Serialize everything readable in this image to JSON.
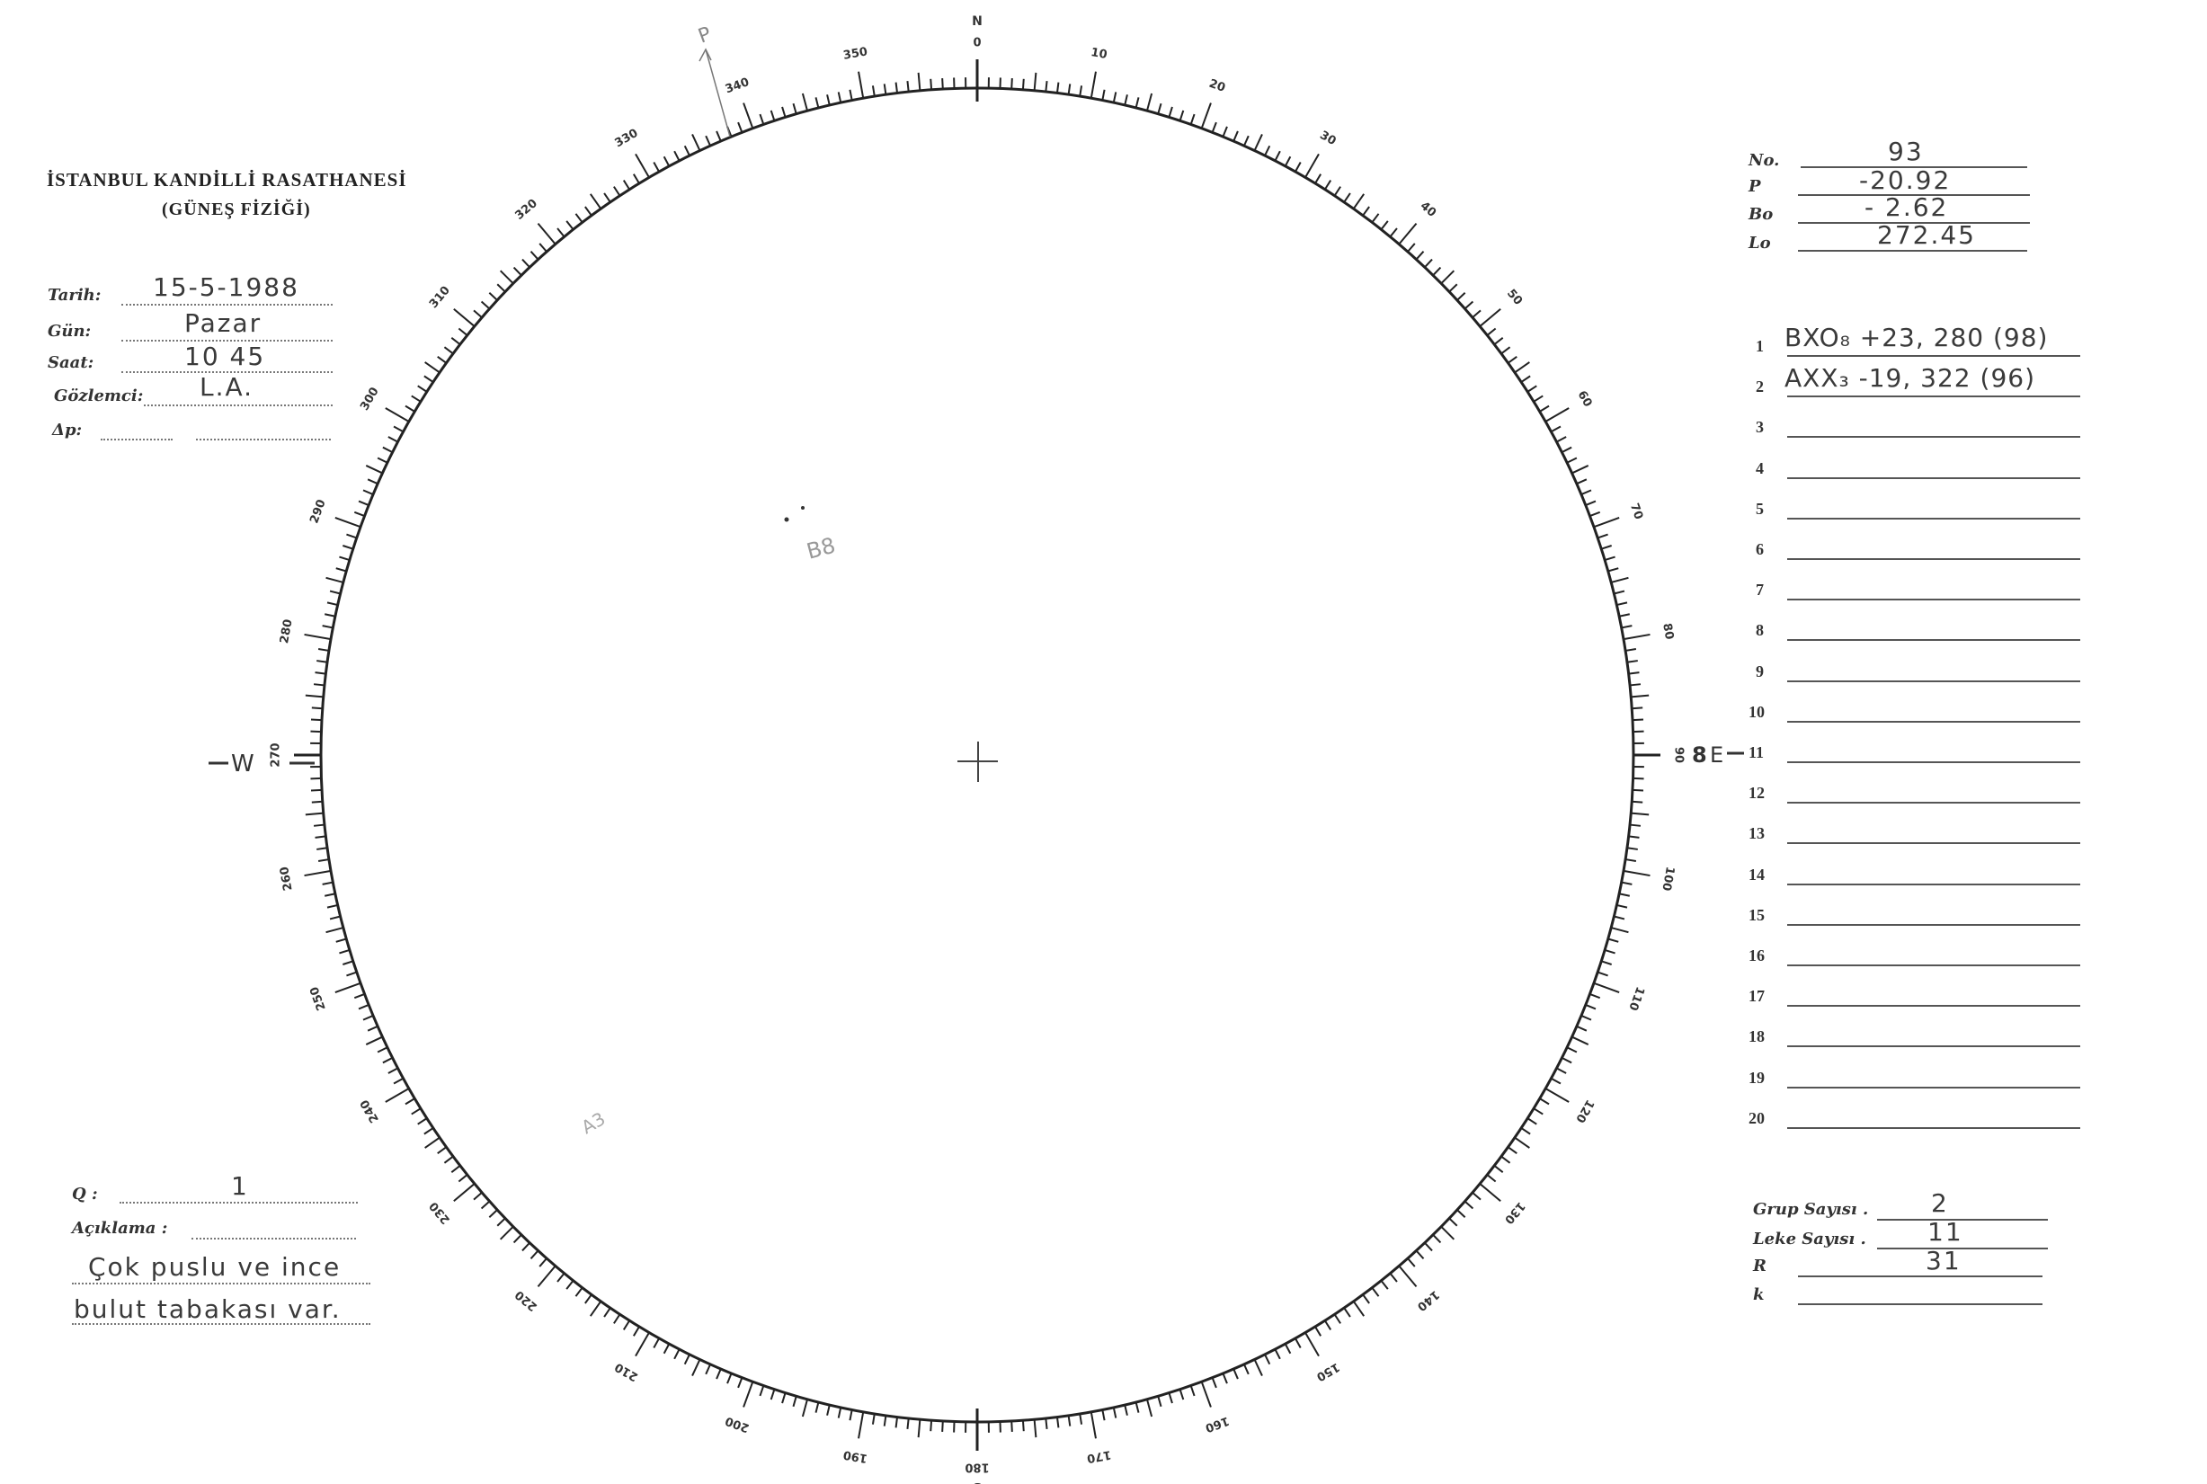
{
  "header": {
    "institution": "İSTANBUL KANDİLLİ RASATHANESİ",
    "department": "(GÜNEŞ FİZİĞİ)"
  },
  "observation": {
    "date_label": "Tarih:",
    "date_value": "15-5-1988",
    "day_label": "Gün:",
    "day_value": "Pazar",
    "time_label": "Saat:",
    "time_value": "10 45",
    "observer_label": "Gözlemci:",
    "observer_value": "L.A.",
    "delta_p_label": "Δp:",
    "delta_p_value": ""
  },
  "solar_params": {
    "no_label": "No.",
    "no_value": "93",
    "p_label": "P",
    "p_value": "-20.92",
    "bo_label": "Bo",
    "bo_value": "- 2.62",
    "lo_label": "Lo",
    "lo_value": "272.45"
  },
  "groups": [
    {
      "n": "1",
      "value": "BXO₈ +23, 280 (98)"
    },
    {
      "n": "2",
      "value": "AXX₃ -19, 322 (96)"
    },
    {
      "n": "3",
      "value": ""
    },
    {
      "n": "4",
      "value": ""
    },
    {
      "n": "5",
      "value": ""
    },
    {
      "n": "6",
      "value": ""
    },
    {
      "n": "7",
      "value": ""
    },
    {
      "n": "8",
      "value": ""
    },
    {
      "n": "9",
      "value": ""
    },
    {
      "n": "10",
      "value": ""
    },
    {
      "n": "11",
      "value": ""
    },
    {
      "n": "12",
      "value": ""
    },
    {
      "n": "13",
      "value": ""
    },
    {
      "n": "14",
      "value": ""
    },
    {
      "n": "15",
      "value": ""
    },
    {
      "n": "16",
      "value": ""
    },
    {
      "n": "17",
      "value": ""
    },
    {
      "n": "18",
      "value": ""
    },
    {
      "n": "19",
      "value": ""
    },
    {
      "n": "20",
      "value": ""
    }
  ],
  "counts": {
    "group_count_label": "Grup Sayısı .",
    "group_count_value": "2",
    "spot_count_label": "Leke Sayısı .",
    "spot_count_value": "11",
    "r_label": "R",
    "r_value": "31",
    "k_label": "k",
    "k_value": ""
  },
  "remarks": {
    "q_label": "Q :",
    "q_value": "1",
    "desc_label": "Açıklama :",
    "line1": "Çok puslu ve ince",
    "line2": "bulut tabakası var."
  },
  "dial": {
    "north": "N",
    "south": "S",
    "east": "E",
    "west": "W",
    "east_prefix": "8",
    "degree_labels": [
      "0",
      "10",
      "20",
      "30",
      "40",
      "50",
      "60",
      "70",
      "80",
      "90",
      "100",
      "110",
      "120",
      "130",
      "140",
      "150",
      "160",
      "170",
      "180",
      "190",
      "200",
      "210",
      "220",
      "230",
      "240",
      "250",
      "260",
      "270",
      "280",
      "290",
      "300",
      "310",
      "320",
      "330",
      "340",
      "350"
    ]
  },
  "annotations": {
    "pole_mark": "P",
    "group_b_mark": "B8",
    "group_a_mark": "A3"
  }
}
